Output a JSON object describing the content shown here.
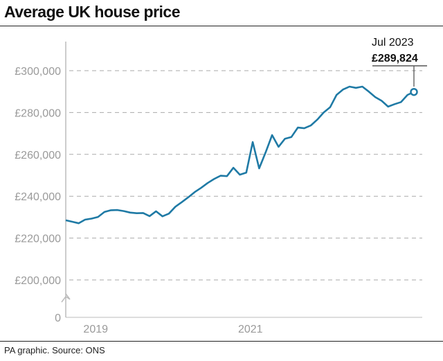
{
  "footer": "PA graphic. Source: ONS",
  "chart_data": {
    "type": "line",
    "title": "Average UK house price",
    "xlabel": "",
    "ylabel": "",
    "start": "Jan 2019",
    "frequency": "monthly",
    "x_tick_labels": [
      "2019",
      "2021"
    ],
    "y_tick_labels": [
      "£300,000",
      "£280,000",
      "£260,000",
      "£240,000",
      "£220,000",
      "£200,000",
      "0"
    ],
    "y_ticks": [
      300000,
      280000,
      260000,
      240000,
      220000,
      200000
    ],
    "ylim": [
      200000,
      300000
    ],
    "grid": true,
    "series": [
      {
        "name": "Average UK house price",
        "color": "#1f7aa5",
        "values": [
          228500,
          227800,
          227100,
          228800,
          229300,
          230100,
          232500,
          233300,
          233400,
          232900,
          232200,
          231900,
          232000,
          230500,
          232800,
          230400,
          231700,
          235000,
          237200,
          239500,
          242000,
          244000,
          246300,
          248200,
          249800,
          249600,
          253600,
          250300,
          251300,
          265900,
          253300,
          261000,
          269200,
          263600,
          267500,
          268300,
          272800,
          272500,
          273800,
          276600,
          280000,
          282500,
          288400,
          291000,
          292400,
          291800,
          292400,
          290000,
          287400,
          285600,
          282800,
          284000,
          285000,
          288400,
          289824
        ]
      }
    ],
    "annotation": {
      "label": "Jul 2023",
      "value": "£289,824"
    }
  }
}
